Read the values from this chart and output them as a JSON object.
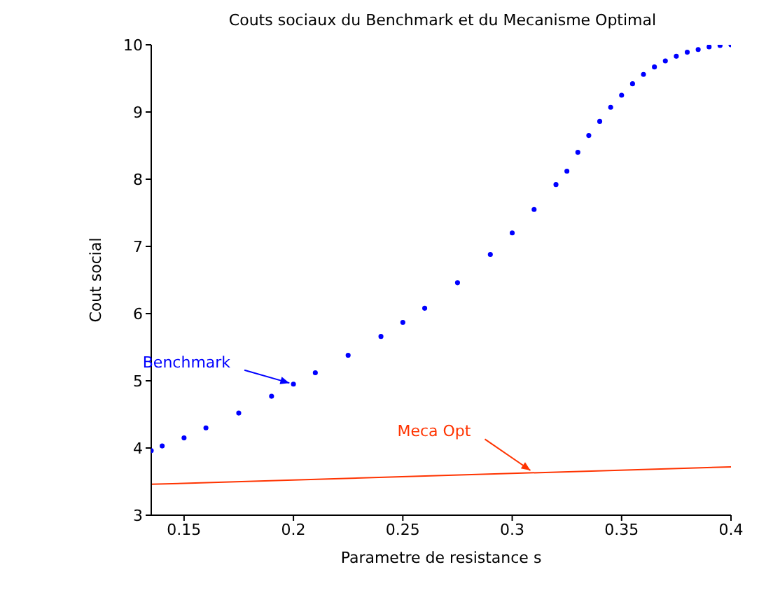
{
  "chart_data": {
    "type": "line",
    "title": "Couts sociaux du Benchmark et du Mecanisme Optimal",
    "xlabel": "Parametre de resistance s",
    "ylabel": "Cout social",
    "xlim": [
      0.135,
      0.4
    ],
    "ylim": [
      3,
      10
    ],
    "xticks": [
      0.15,
      0.2,
      0.25,
      0.3,
      0.35,
      0.4
    ],
    "yticks": [
      3,
      4,
      5,
      6,
      7,
      8,
      9,
      10
    ],
    "grid": false,
    "legend": false,
    "series": [
      {
        "name": "Benchmark",
        "type": "scatter",
        "marker": "circle",
        "color": "#0000ff",
        "x": [
          0.135,
          0.14,
          0.15,
          0.16,
          0.175,
          0.19,
          0.2,
          0.21,
          0.225,
          0.24,
          0.25,
          0.26,
          0.275,
          0.29,
          0.3,
          0.31,
          0.32,
          0.325,
          0.33,
          0.335,
          0.34,
          0.345,
          0.35,
          0.355,
          0.36,
          0.365,
          0.37,
          0.375,
          0.38,
          0.385,
          0.39,
          0.395,
          0.4
        ],
        "values": [
          3.96,
          4.03,
          4.15,
          4.3,
          4.52,
          4.77,
          4.95,
          5.12,
          5.38,
          5.66,
          5.87,
          6.08,
          6.46,
          6.88,
          7.2,
          7.55,
          7.92,
          8.12,
          8.4,
          8.65,
          8.86,
          9.07,
          9.25,
          9.42,
          9.56,
          9.67,
          9.76,
          9.83,
          9.89,
          9.93,
          9.97,
          9.99,
          10
        ]
      },
      {
        "name": "Meca Opt",
        "type": "line",
        "marker": "none",
        "line_style": "solid",
        "color": "#ff3300",
        "x": [
          0.135,
          0.4
        ],
        "values": [
          3.46,
          3.72
        ]
      }
    ]
  }
}
